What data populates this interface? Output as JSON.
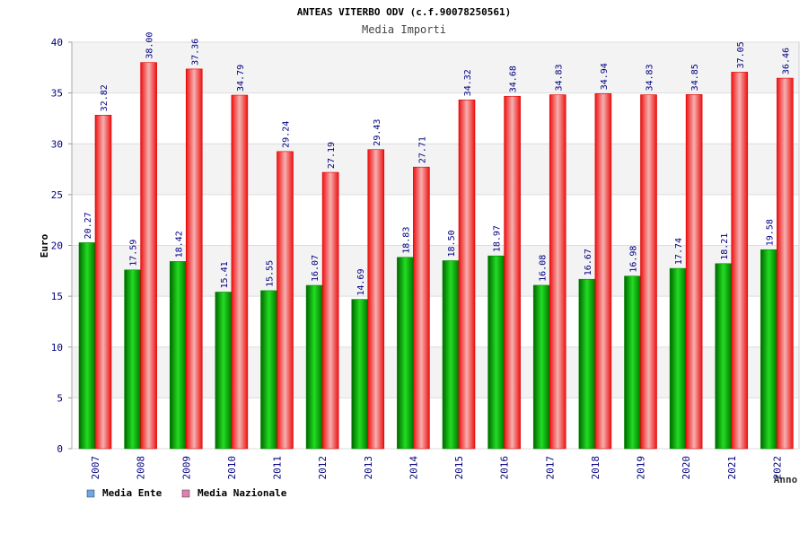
{
  "chart_data": {
    "type": "bar",
    "title": "ANTEAS VITERBO ODV (c.f.90078250561)",
    "subtitle": "Media Importi",
    "xlabel": "Anno",
    "ylabel": "Euro",
    "ylim": [
      0,
      40
    ],
    "yticks": [
      "0",
      "5",
      "10",
      "15",
      "20",
      "25",
      "30",
      "35",
      "40"
    ],
    "categories": [
      "2007",
      "2008",
      "2009",
      "2010",
      "2011",
      "2012",
      "2013",
      "2014",
      "2015",
      "2016",
      "2017",
      "2018",
      "2019",
      "2020",
      "2021",
      "2022"
    ],
    "series": [
      {
        "name": "Media Ente",
        "values": [
          20.27,
          17.59,
          18.42,
          15.41,
          15.55,
          16.07,
          14.69,
          18.83,
          18.5,
          18.97,
          16.08,
          16.67,
          16.98,
          17.74,
          18.21,
          19.58
        ],
        "labels": [
          "20.27",
          "17.59",
          "18.42",
          "15.41",
          "15.55",
          "16.07",
          "14.69",
          "18.83",
          "18.50",
          "18.97",
          "16.08",
          "16.67",
          "16.98",
          "17.74",
          "18.21",
          "19.58"
        ],
        "color": "#00b000",
        "legend_color": "#6aa8e8"
      },
      {
        "name": "Media Nazionale",
        "values": [
          32.82,
          38.0,
          37.36,
          34.79,
          29.24,
          27.19,
          29.43,
          27.71,
          34.32,
          34.68,
          34.83,
          34.94,
          34.83,
          34.85,
          37.05,
          36.46
        ],
        "labels": [
          "32.82",
          "38.00",
          "37.36",
          "34.79",
          "29.24",
          "27.19",
          "29.43",
          "27.71",
          "34.32",
          "34.68",
          "34.83",
          "34.94",
          "34.83",
          "34.85",
          "37.05",
          "36.46"
        ],
        "color": "#ee1111",
        "legend_color": "#e080b0"
      }
    ],
    "grid": true,
    "legend": "bottom-left"
  }
}
